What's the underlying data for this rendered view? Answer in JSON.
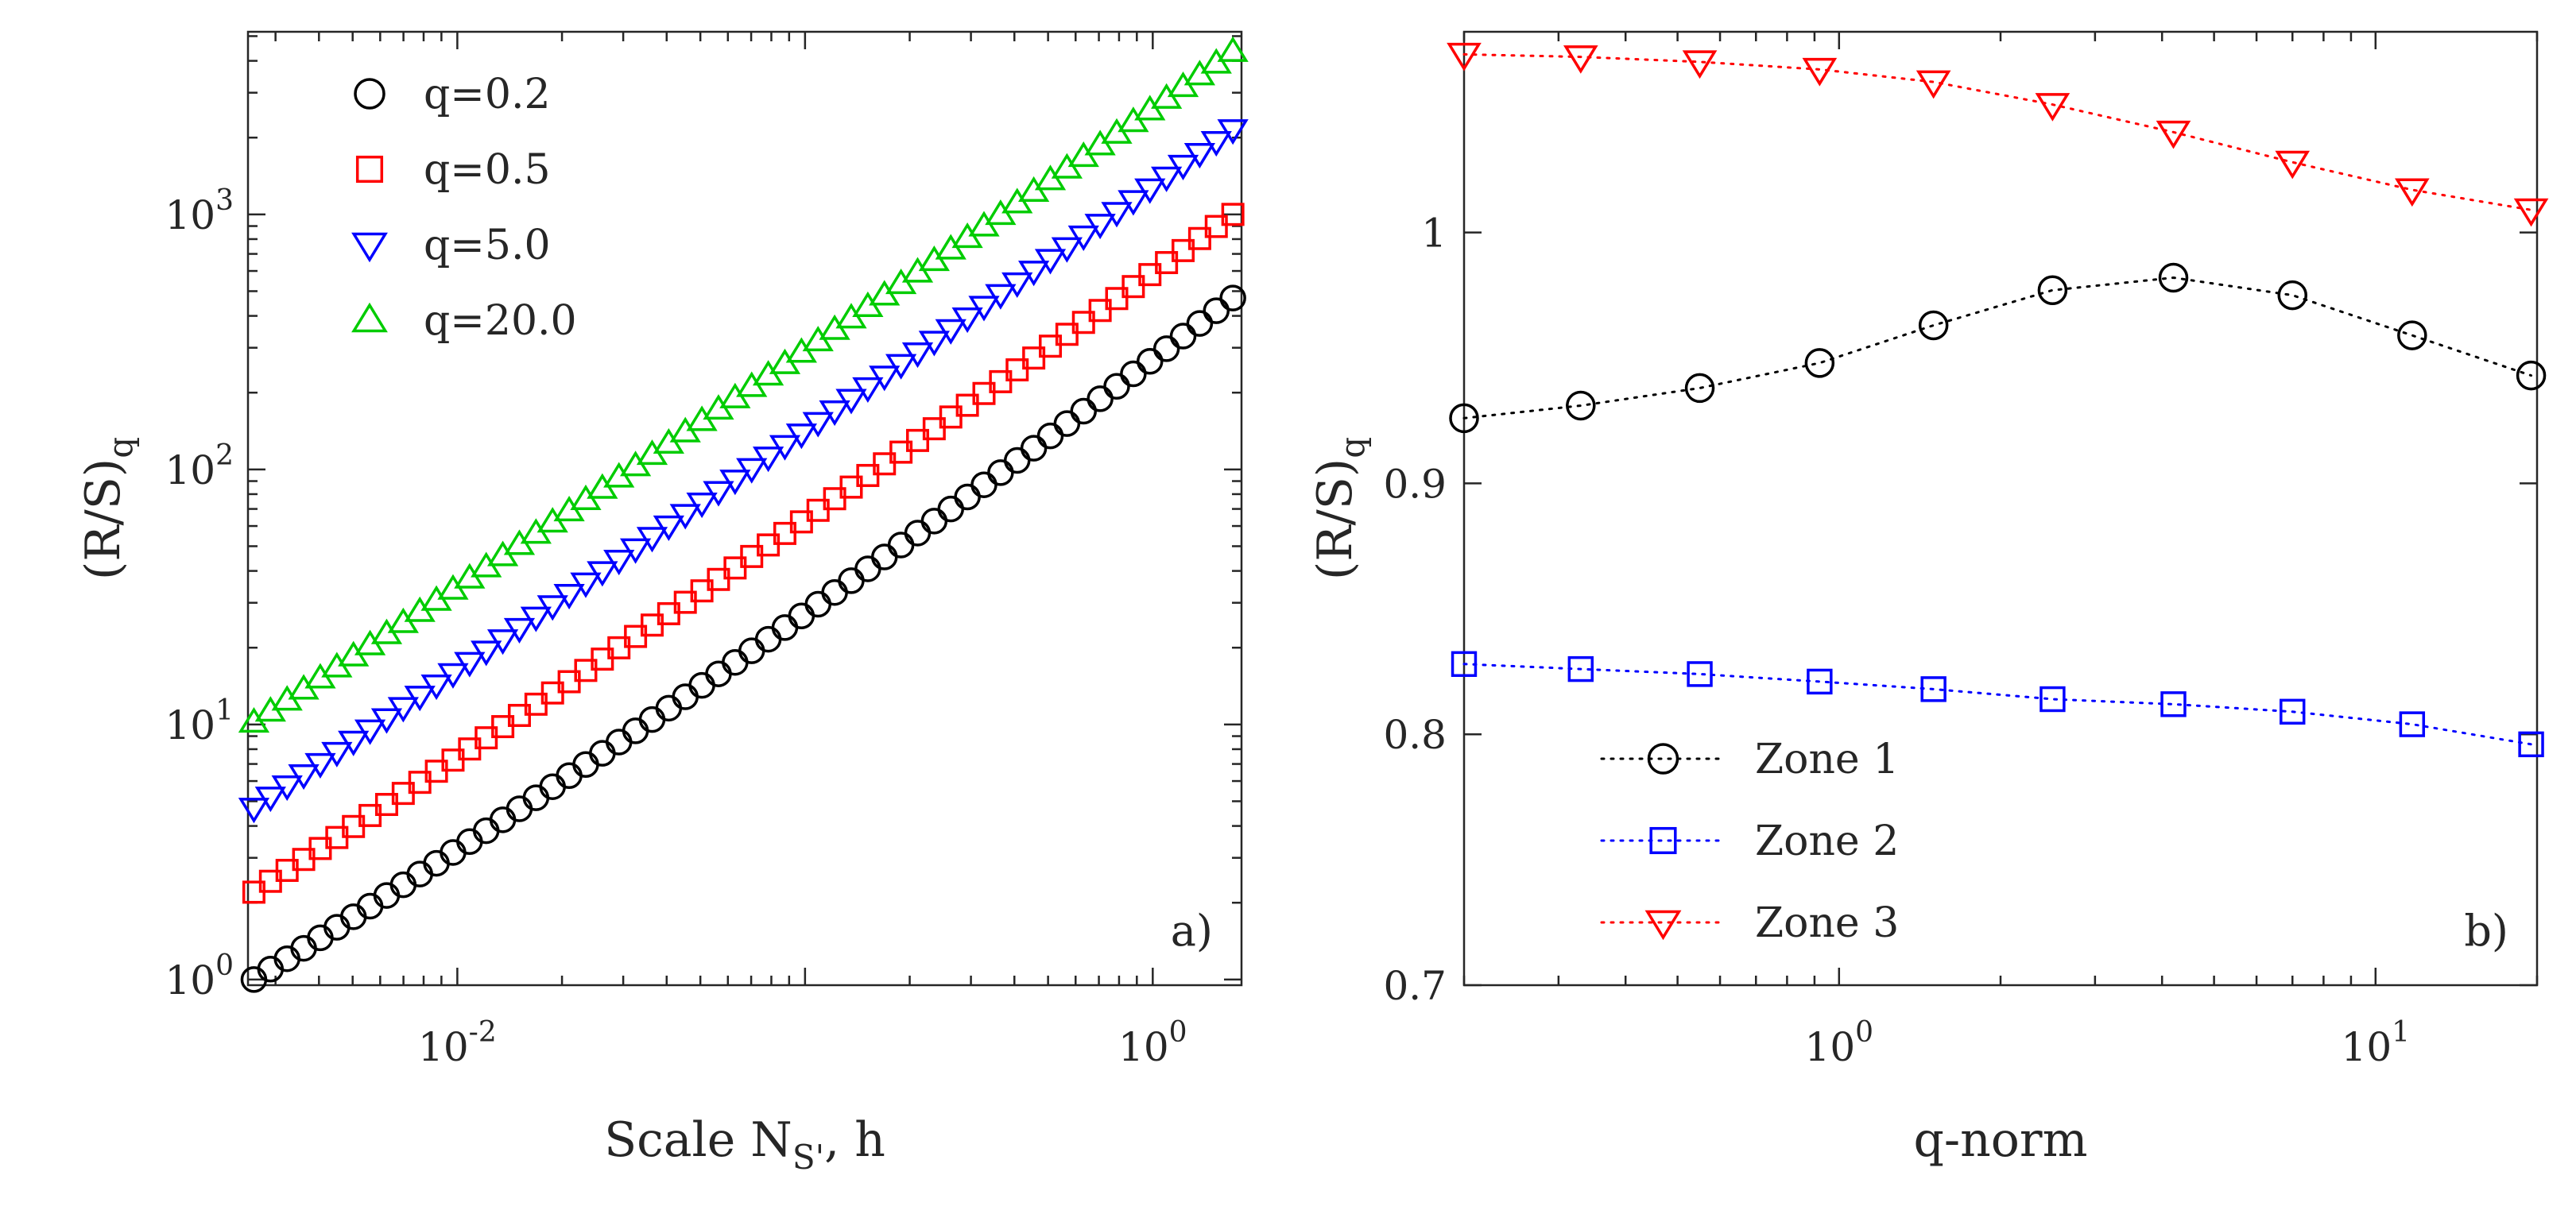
{
  "chart_data": [
    {
      "panel": "a)",
      "type": "scatter",
      "xscale": "log",
      "yscale": "log",
      "xlabel_main": "Scale N",
      "xlabel_sub": "S'",
      "xlabel_tail": ", h",
      "ylabel_main": "(R/S)",
      "ylabel_sub": "q",
      "xlim": [
        0.0025,
        1.8
      ],
      "ylim": [
        0.95,
        5200
      ],
      "xticks": [
        {
          "base": "10",
          "exp": "-2",
          "value": 0.01
        },
        {
          "base": "10",
          "exp": "0",
          "value": 1
        }
      ],
      "yticks": [
        {
          "base": "10",
          "exp": "0",
          "value": 1
        },
        {
          "base": "10",
          "exp": "1",
          "value": 10
        },
        {
          "base": "10",
          "exp": "2",
          "value": 100
        },
        {
          "base": "10",
          "exp": "3",
          "value": 1000
        }
      ],
      "legend_position": "top-left",
      "x_range": [
        0.0026,
        1.7
      ],
      "num_points": 60,
      "series": [
        {
          "name": "q=0.2",
          "marker": "circle",
          "color": "#000000",
          "start": 1.0,
          "end": 470,
          "curvature": 1.0
        },
        {
          "name": "q=0.5",
          "marker": "square",
          "color": "#ff0000",
          "start": 2.2,
          "end": 1000,
          "curvature": 0.5
        },
        {
          "name": "q=5.0",
          "marker": "triangle-down",
          "color": "#0000ff",
          "start": 4.7,
          "end": 2150,
          "curvature": 0.3
        },
        {
          "name": "q=20.0",
          "marker": "triangle-up",
          "color": "#00cc00",
          "start": 10.2,
          "end": 4350,
          "curvature": 0.3
        }
      ]
    },
    {
      "panel": "b)",
      "type": "line",
      "xscale": "log",
      "yscale": "linear",
      "xlabel": "q-norm",
      "ylabel_main": "(R/S)",
      "ylabel_sub": "q",
      "xlim": [
        0.2,
        20
      ],
      "ylim": [
        0.7,
        1.08
      ],
      "xticks": [
        {
          "base": "10",
          "exp": "0",
          "value": 1
        },
        {
          "base": "10",
          "exp": "1",
          "value": 10
        }
      ],
      "yticks": [
        {
          "label": "0.7",
          "value": 0.7
        },
        {
          "label": "0.8",
          "value": 0.8
        },
        {
          "label": "0.9",
          "value": 0.9
        },
        {
          "label": "1",
          "value": 1.0
        }
      ],
      "legend_position": "bottom-left",
      "x": [
        0.2,
        0.33,
        0.55,
        0.92,
        1.5,
        2.5,
        4.2,
        7.0,
        11.7,
        19.5
      ],
      "series": [
        {
          "name": "Zone 1",
          "marker": "circle",
          "color": "#000000",
          "values": [
            0.926,
            0.931,
            0.938,
            0.948,
            0.963,
            0.977,
            0.982,
            0.975,
            0.959,
            0.943
          ]
        },
        {
          "name": "Zone 2",
          "marker": "square",
          "color": "#0000ff",
          "values": [
            0.828,
            0.826,
            0.824,
            0.821,
            0.818,
            0.814,
            0.812,
            0.809,
            0.804,
            0.796
          ]
        },
        {
          "name": "Zone 3",
          "marker": "triangle-down",
          "color": "#ff0000",
          "values": [
            1.071,
            1.07,
            1.068,
            1.065,
            1.06,
            1.051,
            1.04,
            1.028,
            1.017,
            1.009
          ]
        }
      ]
    }
  ]
}
